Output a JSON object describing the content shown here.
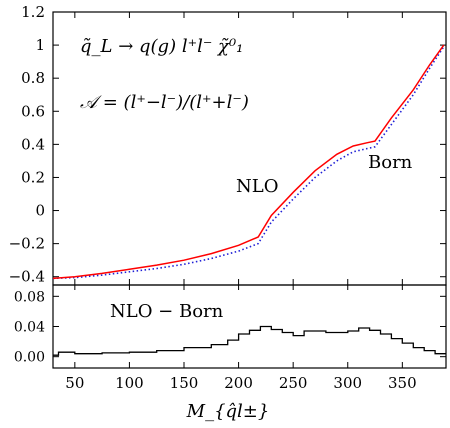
{
  "chart_data": [
    {
      "type": "line",
      "process_text": "q̃_L → q(g) l⁺l⁻ χ̃⁰₁",
      "asymmetry_text": "𝒜 = (l⁺−l⁻)/(l⁺+l⁻)",
      "ylim": [
        -0.45,
        1.2
      ],
      "yticks": [
        1.2,
        1,
        0.8,
        0.6,
        0.4,
        0.2,
        0,
        -0.2,
        -0.4
      ],
      "ytick_labels": [
        "1.2",
        "1",
        "0.8",
        "0.6",
        "0.4",
        "0.2",
        "0",
        "−0.2",
        "−0.4"
      ],
      "series": [
        {
          "name": "NLO",
          "color": "#ff0000",
          "style": "solid",
          "x": [
            30,
            50,
            75,
            100,
            125,
            150,
            175,
            200,
            218,
            230,
            250,
            270,
            290,
            305,
            318,
            325,
            340,
            360,
            375,
            388
          ],
          "y": [
            -0.41,
            -0.4,
            -0.38,
            -0.355,
            -0.33,
            -0.3,
            -0.26,
            -0.21,
            -0.16,
            -0.03,
            0.11,
            0.24,
            0.34,
            0.39,
            0.41,
            0.42,
            0.56,
            0.73,
            0.88,
            1.0
          ]
        },
        {
          "name": "Born",
          "color": "#1f1fd6",
          "style": "dotted",
          "x": [
            30,
            50,
            75,
            100,
            125,
            150,
            175,
            200,
            218,
            230,
            250,
            270,
            290,
            305,
            318,
            325,
            340,
            360,
            375,
            388
          ],
          "y": [
            -0.41,
            -0.405,
            -0.39,
            -0.37,
            -0.35,
            -0.325,
            -0.29,
            -0.245,
            -0.2,
            -0.07,
            0.07,
            0.2,
            0.3,
            0.355,
            0.375,
            0.385,
            0.52,
            0.7,
            0.86,
            0.99
          ]
        }
      ],
      "labels": {
        "nlo": "NLO",
        "born": "Born"
      }
    },
    {
      "type": "line",
      "title": "NLO − Born",
      "ylim": [
        -0.015,
        0.095
      ],
      "yticks": [
        0.08,
        0.04,
        0.0
      ],
      "ytick_labels": [
        "0.08",
        "0.04",
        "0.00"
      ],
      "series": [
        {
          "style": "step",
          "color": "#000000",
          "x": [
            30,
            35,
            50,
            75,
            100,
            125,
            150,
            175,
            190,
            200,
            210,
            220,
            230,
            240,
            250,
            260,
            280,
            300,
            310,
            320,
            330,
            340,
            350,
            360,
            370,
            380,
            390
          ],
          "y": [
            0.002,
            0.006,
            0.004,
            0.005,
            0.006,
            0.008,
            0.012,
            0.016,
            0.022,
            0.03,
            0.035,
            0.04,
            0.036,
            0.032,
            0.028,
            0.034,
            0.032,
            0.034,
            0.038,
            0.035,
            0.03,
            0.024,
            0.018,
            0.012,
            0.008,
            0.004,
            0.004
          ]
        }
      ]
    }
  ],
  "xaxis": {
    "xlim": [
      30,
      390
    ],
    "ticks": [
      50,
      100,
      150,
      200,
      250,
      300,
      350
    ],
    "tick_labels": [
      "50",
      "100",
      "150",
      "200",
      "250",
      "300",
      "350"
    ],
    "label": "M_{q̂l±}"
  }
}
